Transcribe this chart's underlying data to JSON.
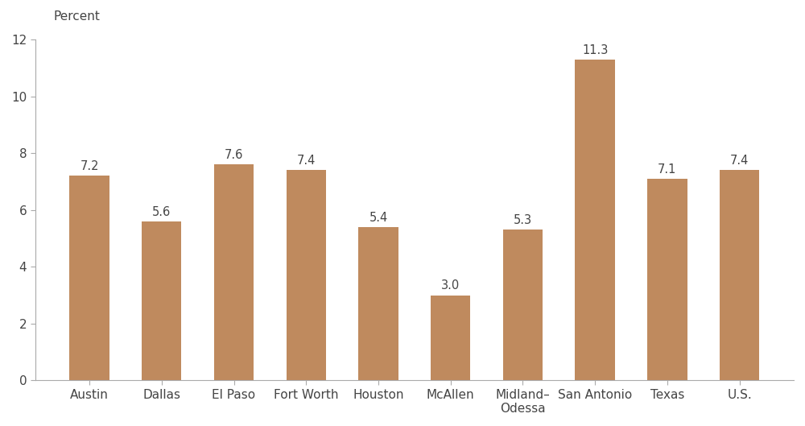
{
  "categories": [
    "Austin",
    "Dallas",
    "El Paso",
    "Fort Worth",
    "Houston",
    "McAllen",
    "Midland–\nOdessa",
    "San Antonio",
    "Texas",
    "U.S."
  ],
  "values": [
    7.2,
    5.6,
    7.6,
    7.4,
    5.4,
    3.0,
    5.3,
    11.3,
    7.1,
    7.4
  ],
  "bar_color": "#bf8a5e",
  "percent_label": "Percent",
  "ylim": [
    0,
    12
  ],
  "yticks": [
    0,
    2,
    4,
    6,
    8,
    10,
    12
  ],
  "tick_fontsize": 11,
  "percent_fontsize": 11,
  "value_label_fontsize": 10.5,
  "background_color": "#ffffff",
  "bar_width": 0.55,
  "spine_color": "#aaaaaa",
  "text_color": "#444444"
}
